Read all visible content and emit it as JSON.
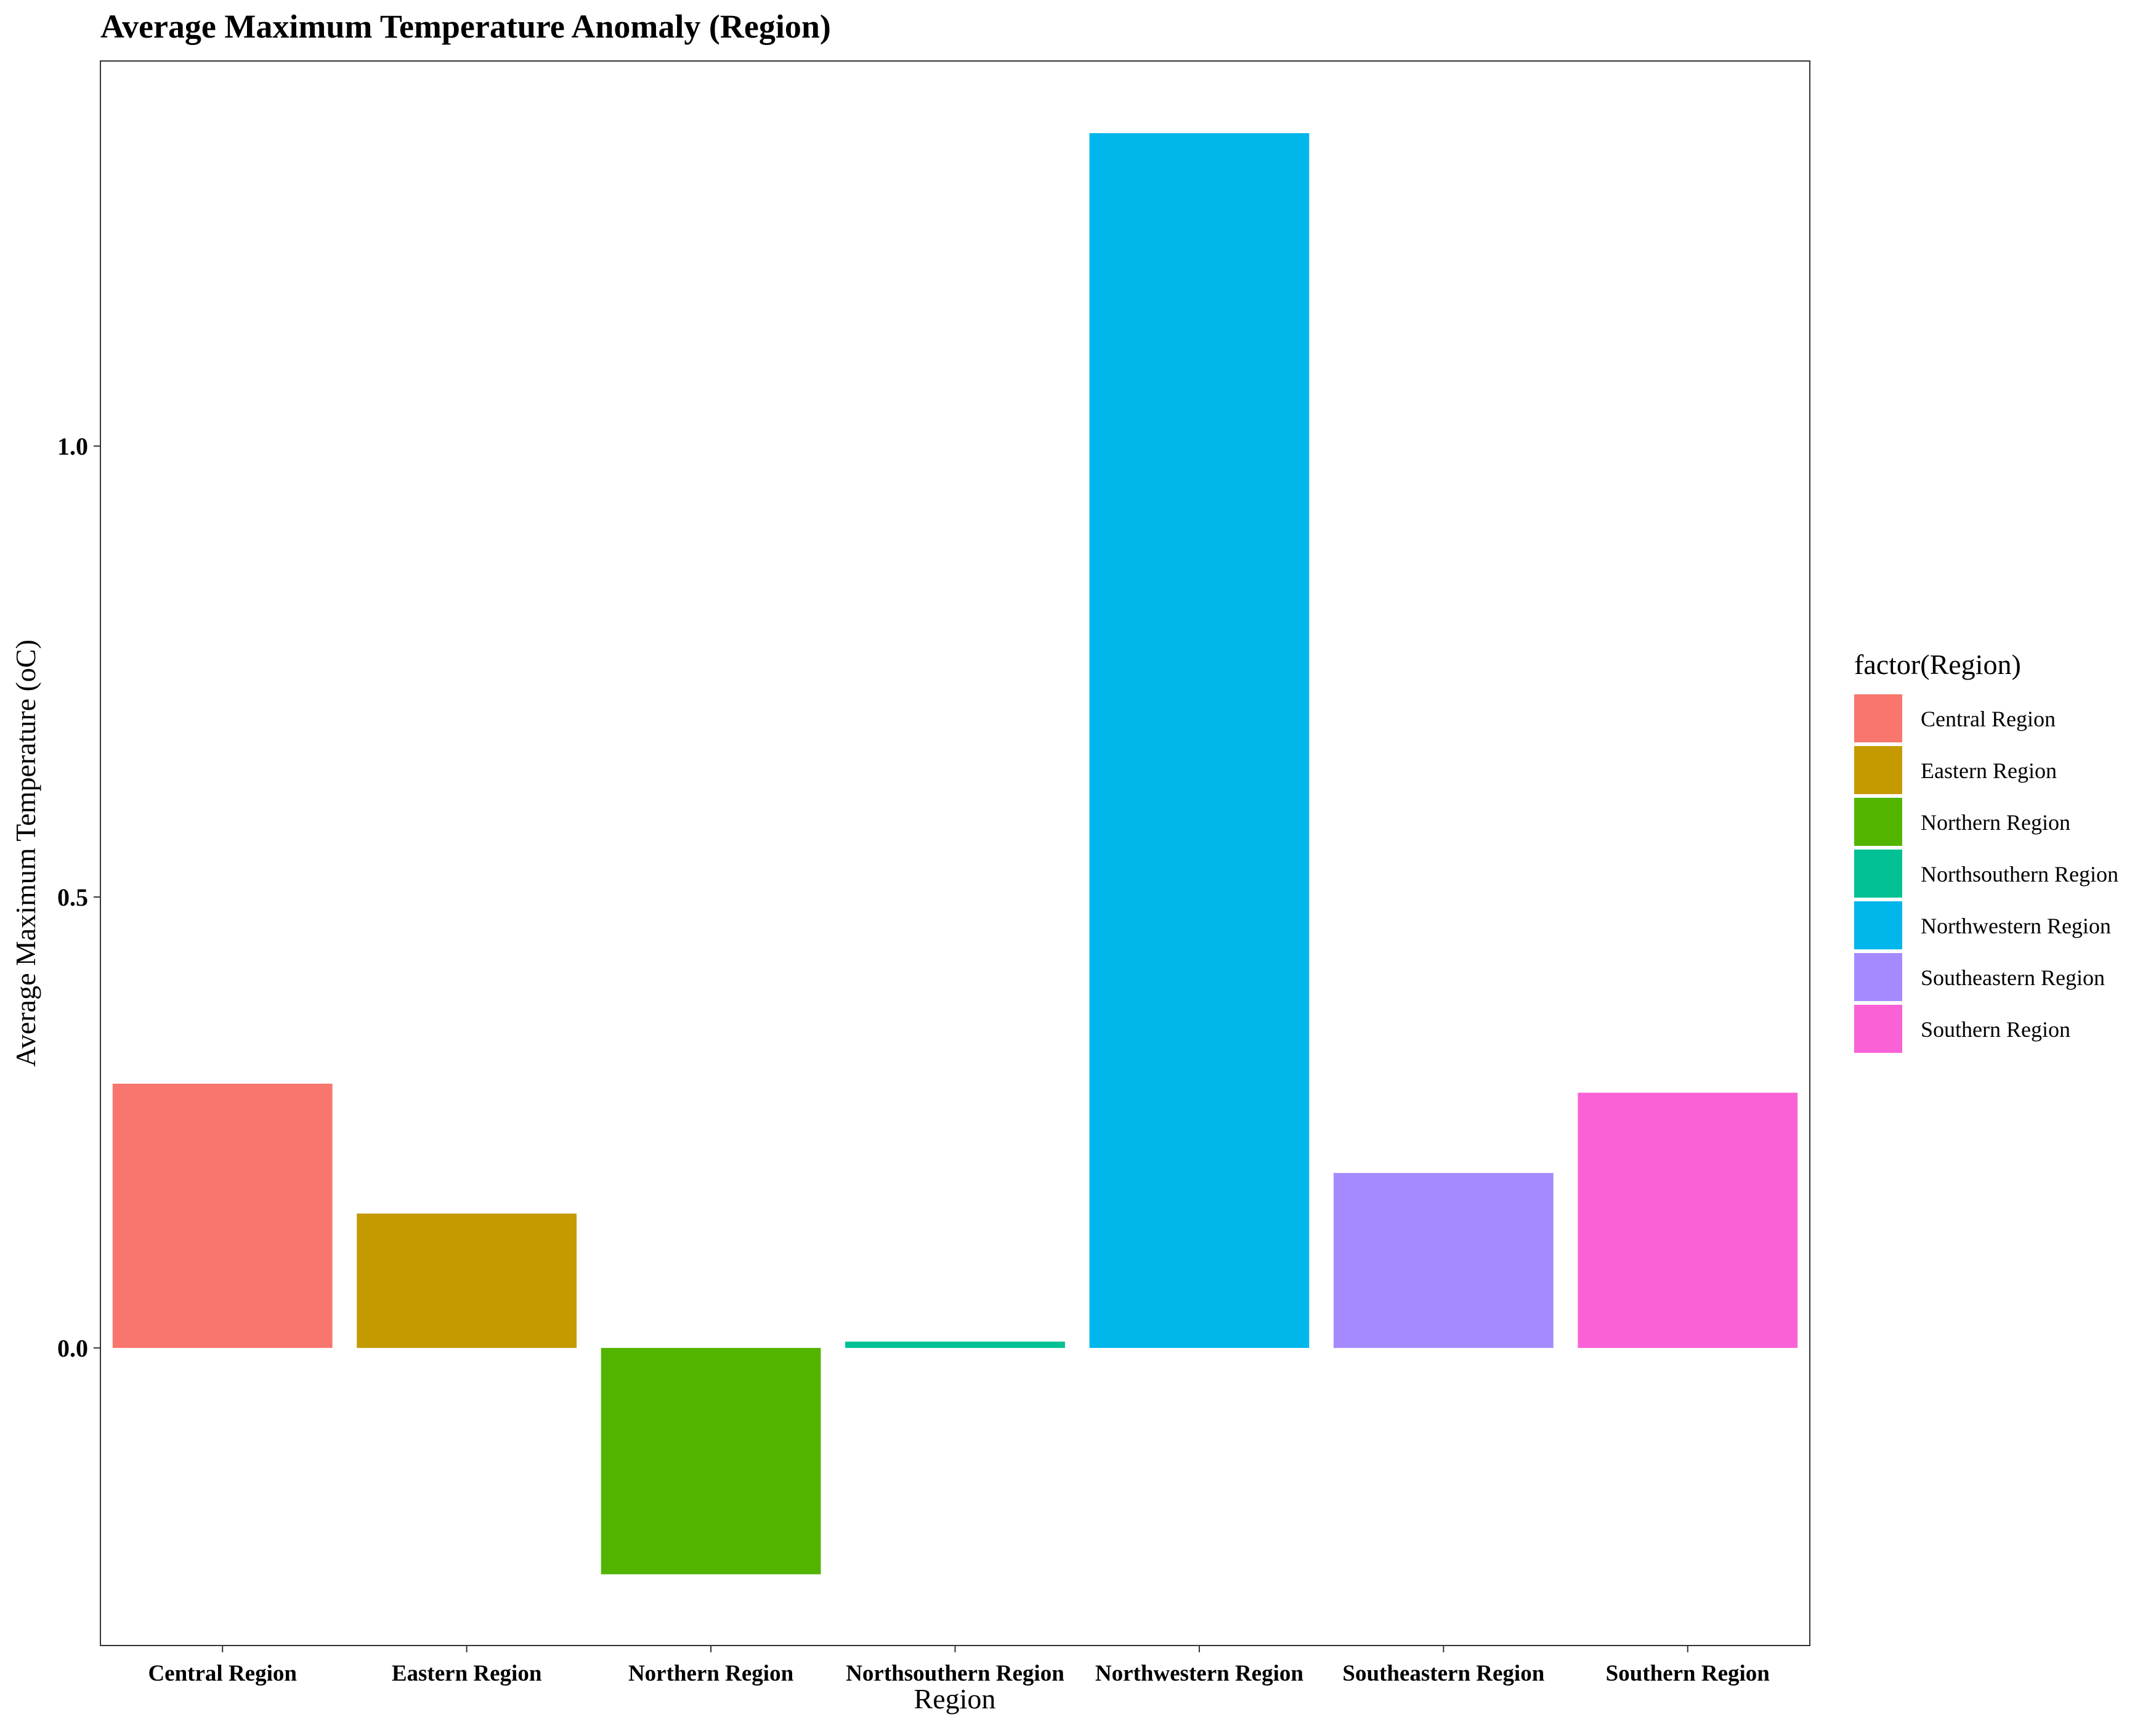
{
  "chart_data": {
    "type": "bar",
    "title": "Average Maximum Temperature Anomaly (Region)",
    "xlabel": "Region",
    "ylabel": "Average Maximum Temperature (oC)",
    "categories": [
      "Central Region",
      "Eastern Region",
      "Northern Region",
      "Northsouthern Region",
      "Northwestern Region",
      "Southeastern Region",
      "Southern Region"
    ],
    "values": [
      0.293,
      0.149,
      -0.251,
      0.007,
      1.347,
      0.194,
      0.283
    ],
    "colors": [
      "#F8766D",
      "#C49A00",
      "#53B400",
      "#00C094",
      "#00B6EB",
      "#A58AFF",
      "#FB61D7"
    ],
    "ylim": [
      -0.33,
      1.427
    ],
    "yticks": [
      0.0,
      0.5,
      1.0
    ],
    "ytick_labels": [
      "0.0",
      "0.5",
      "1.0"
    ],
    "grid": false,
    "legend": {
      "title": "factor(Region)",
      "placement": "right",
      "entries": [
        "Central Region",
        "Eastern Region",
        "Northern Region",
        "Northsouthern Region",
        "Northwestern Region",
        "Southeastern Region",
        "Southern Region"
      ]
    }
  }
}
